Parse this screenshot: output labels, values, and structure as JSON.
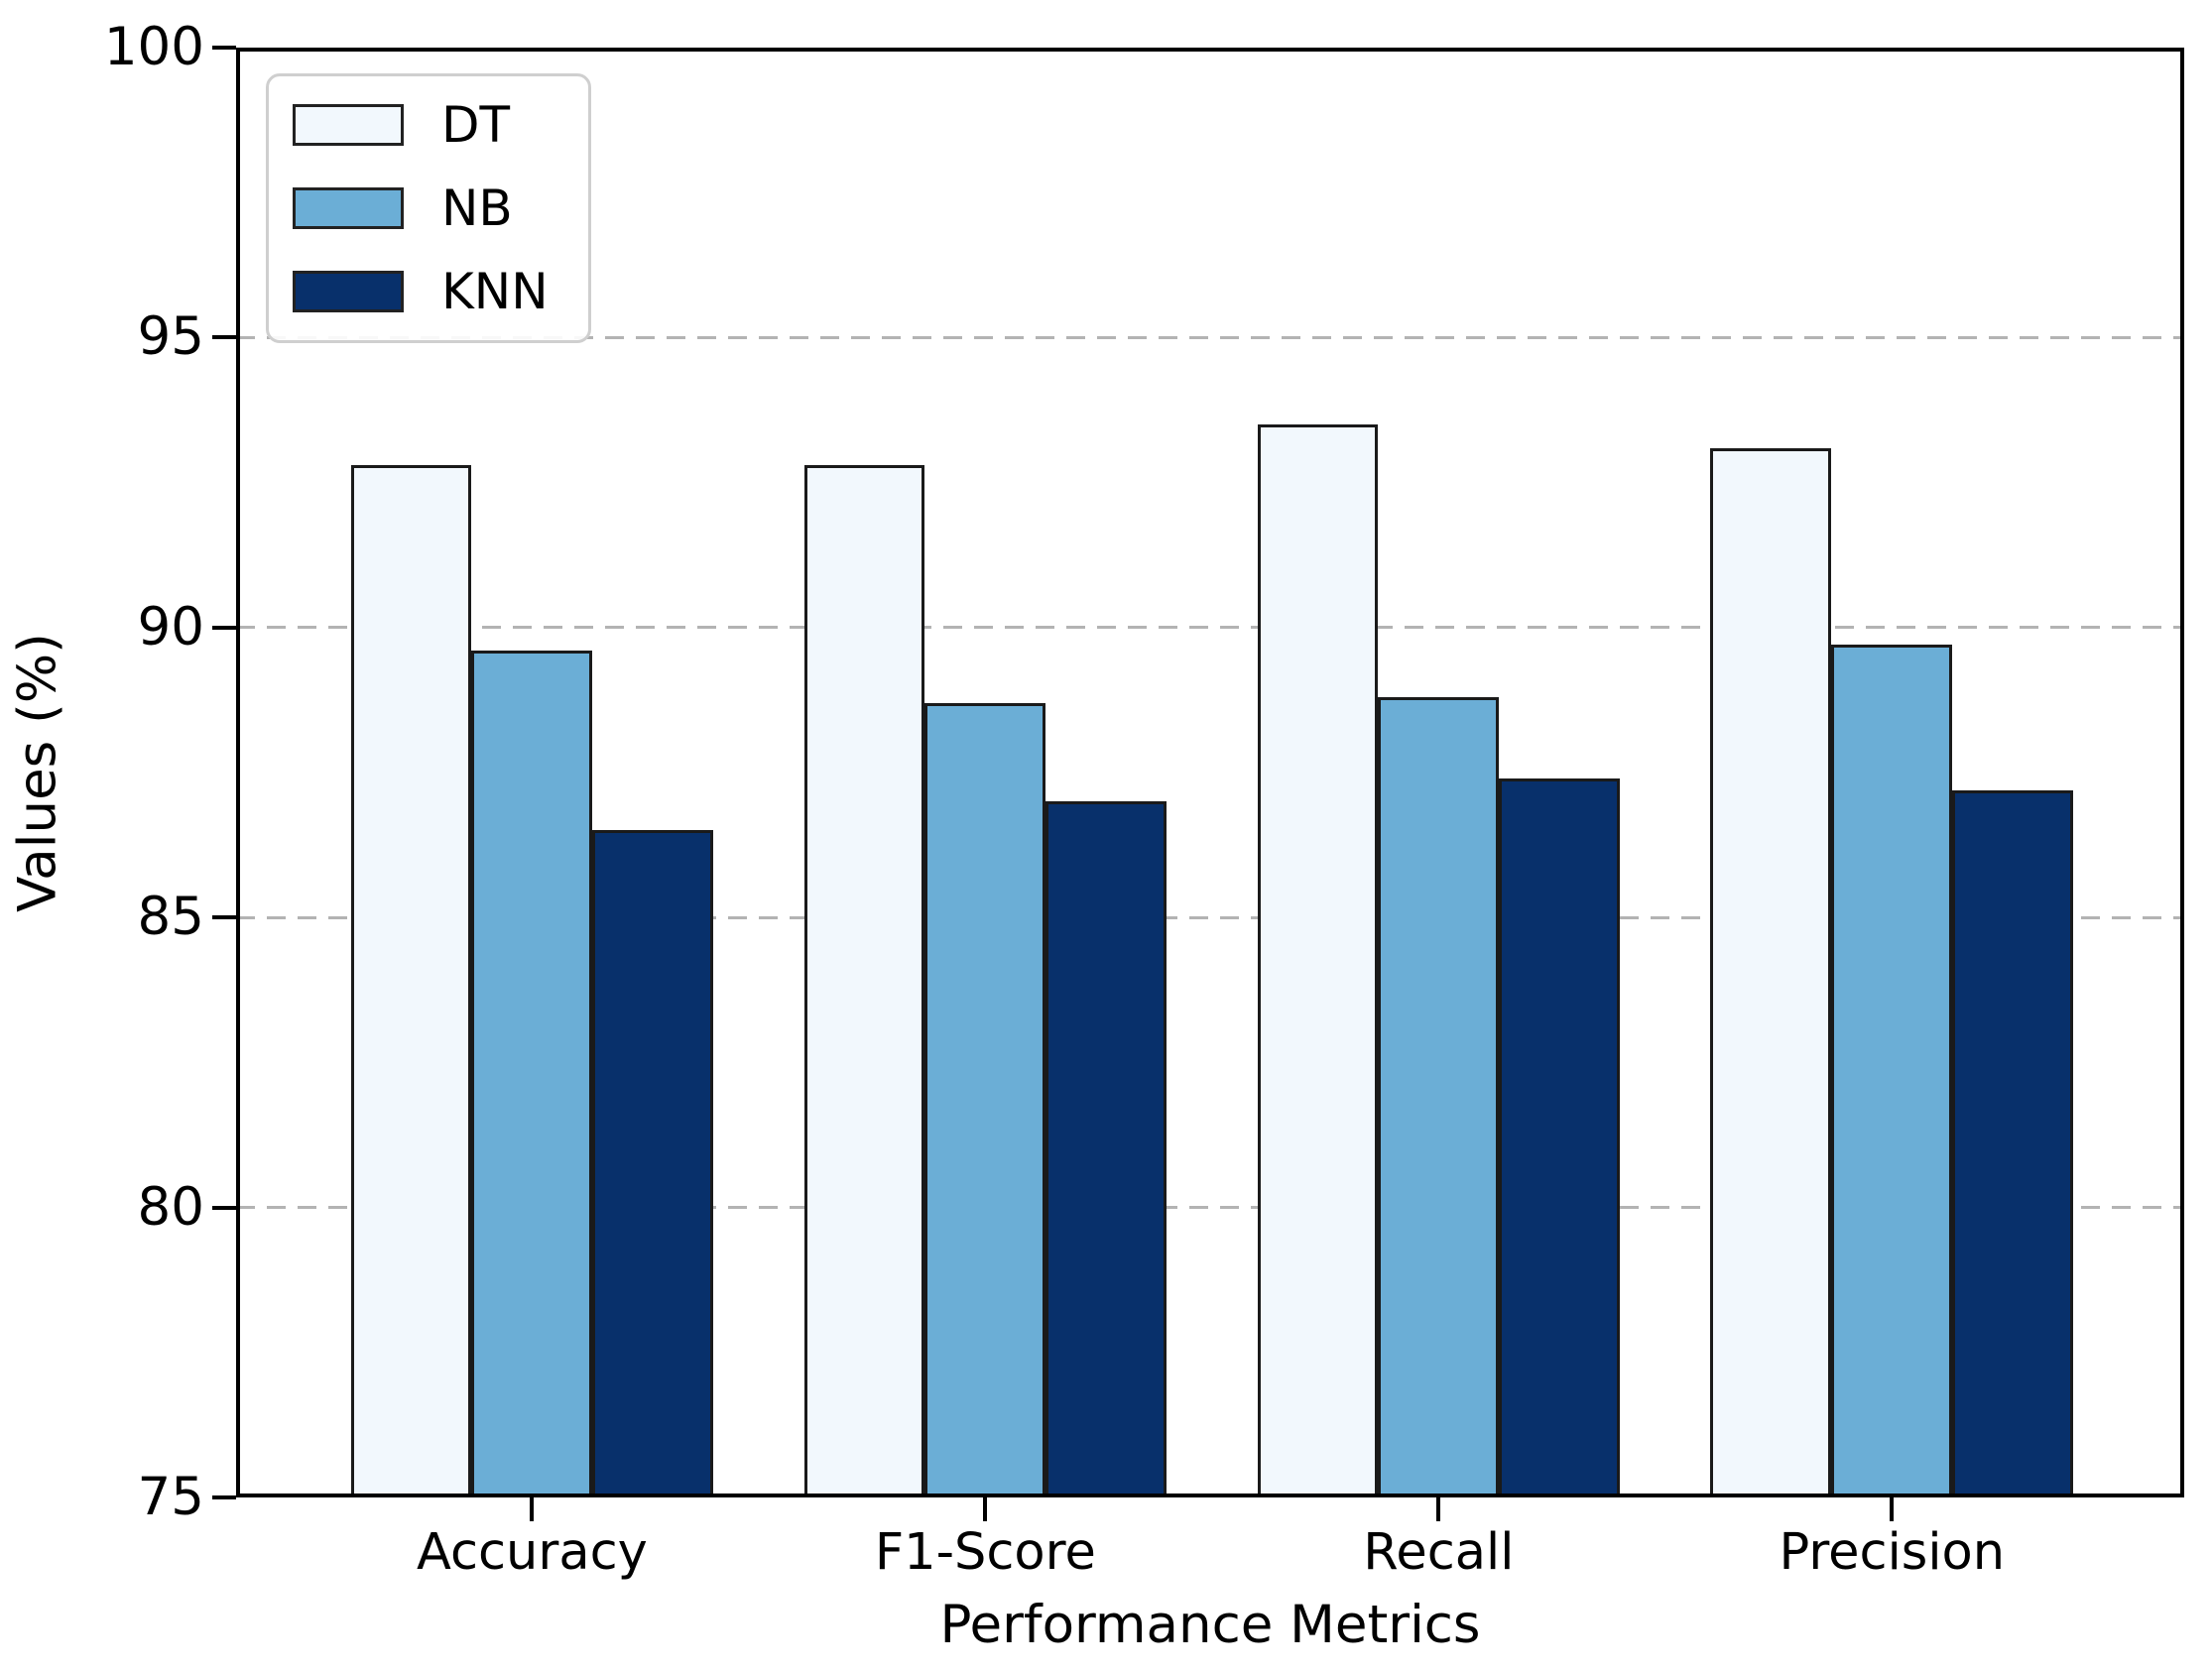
{
  "chart_data": {
    "type": "bar",
    "title": "",
    "xlabel": "Performance Metrics",
    "ylabel": "Values (%)",
    "categories": [
      "Accuracy",
      "F1-Score",
      "Recall",
      "Precision"
    ],
    "series": [
      {
        "name": "DT",
        "color": "#f2f8fd",
        "values": [
          92.8,
          92.8,
          93.5,
          93.1
        ]
      },
      {
        "name": "NB",
        "color": "#6baed6",
        "values": [
          89.6,
          88.7,
          88.8,
          89.7
        ]
      },
      {
        "name": "KNN",
        "color": "#08306b",
        "values": [
          86.5,
          87.0,
          87.4,
          87.2
        ]
      }
    ],
    "bar_edge_color": "#1a1a1a",
    "ylim": [
      75,
      100
    ],
    "yticks": [
      75,
      80,
      85,
      90,
      95,
      100
    ],
    "grid": {
      "axis": "y",
      "style": "dashed",
      "color": "#b3b3b3"
    },
    "legend": {
      "position": "upper-left"
    }
  }
}
